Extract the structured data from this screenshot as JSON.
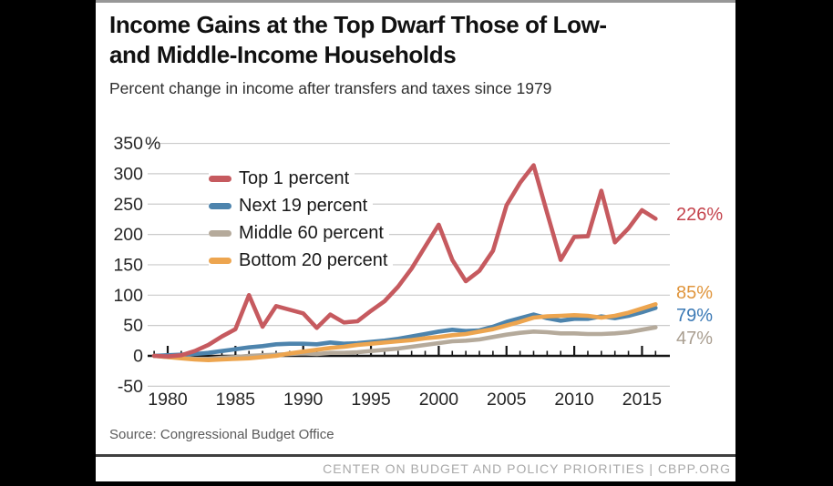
{
  "header": {
    "title_lines": [
      "Income Gains at the Top Dwarf Those of Low-",
      "and Middle-Income Households"
    ],
    "subtitle": "Percent change in income after transfers and taxes since 1979"
  },
  "chart_data": {
    "type": "line",
    "x": [
      1979,
      1980,
      1981,
      1982,
      1983,
      1984,
      1985,
      1986,
      1987,
      1988,
      1989,
      1990,
      1991,
      1992,
      1993,
      1994,
      1995,
      1996,
      1997,
      1998,
      1999,
      2000,
      2001,
      2002,
      2003,
      2004,
      2005,
      2006,
      2007,
      2008,
      2009,
      2010,
      2011,
      2012,
      2013,
      2014,
      2015,
      2016
    ],
    "series": [
      {
        "name": "Top 1 percent",
        "color": "#c65a5f",
        "label_color": "#c4434c",
        "end_label": "226%",
        "values": [
          0,
          -1,
          1,
          8,
          18,
          32,
          44,
          100,
          48,
          82,
          76,
          70,
          46,
          68,
          55,
          57,
          74,
          90,
          114,
          144,
          180,
          216,
          158,
          123,
          140,
          173,
          248,
          285,
          314,
          235,
          158,
          196,
          197,
          272,
          187,
          210,
          240,
          226
        ]
      },
      {
        "name": "Next 19 percent",
        "color": "#4d84ad",
        "label_color": "#3b79b5",
        "end_label": "79%",
        "values": [
          0,
          1,
          2,
          3,
          5,
          8,
          11,
          14,
          16,
          19,
          20,
          20,
          19,
          22,
          20,
          21,
          23,
          25,
          28,
          32,
          36,
          40,
          43,
          41,
          42,
          48,
          56,
          62,
          68,
          62,
          58,
          61,
          61,
          65,
          62,
          66,
          72,
          79
        ]
      },
      {
        "name": "Middle 60 percent",
        "color": "#b5aa9b",
        "label_color": "#a99e90",
        "end_label": "47%",
        "values": [
          0,
          -2,
          -3,
          -5,
          -5,
          -3,
          -2,
          0,
          1,
          2,
          3,
          4,
          3,
          5,
          5,
          6,
          8,
          10,
          12,
          15,
          18,
          21,
          24,
          25,
          27,
          31,
          35,
          38,
          40,
          39,
          37,
          37,
          36,
          36,
          37,
          39,
          43,
          47
        ]
      },
      {
        "name": "Bottom 20 percent",
        "color": "#eda54f",
        "label_color": "#e0953c",
        "end_label": "85%",
        "values": [
          0,
          -2,
          -4,
          -6,
          -7,
          -6,
          -5,
          -4,
          -2,
          0,
          4,
          7,
          10,
          13,
          15,
          18,
          20,
          22,
          24,
          26,
          29,
          31,
          34,
          36,
          40,
          44,
          50,
          56,
          63,
          65,
          66,
          67,
          66,
          63,
          66,
          71,
          78,
          85
        ]
      }
    ],
    "ylim": [
      -50,
      350
    ],
    "y_tick_step": 50,
    "y_ticks": [
      "350",
      "300",
      "250",
      "200",
      "150",
      "100",
      "50",
      "0",
      "-50"
    ],
    "y_unit": "%",
    "x_ticks": [
      "1980",
      "1985",
      "1990",
      "1995",
      "2000",
      "2005",
      "2010",
      "2015"
    ],
    "grid": true,
    "legend_position": "inside-top-left"
  },
  "source": "Source: Congressional Budget Office",
  "footer": "CENTER ON BUDGET AND POLICY PRIORITIES | CBPP.ORG"
}
